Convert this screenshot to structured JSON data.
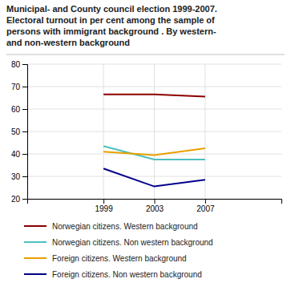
{
  "chart_data": {
    "type": "line",
    "title": "Municipal- and County council election 1999-2007.\nElectoral turnout in per cent among the sample of\npersons with immigrant background . By western-\nand non-western background",
    "x": [
      1999,
      2003,
      2007
    ],
    "series": [
      {
        "name": "Norwegian citizens. Western background",
        "values": [
          66.5,
          66.5,
          65.5
        ],
        "color": "#8b0000"
      },
      {
        "name": "Norwegian citizens. Non western background",
        "values": [
          43.5,
          37.5,
          37.5
        ],
        "color": "#4dbfbf"
      },
      {
        "name": "Foreign citizens. Western background",
        "values": [
          41.0,
          39.5,
          42.5
        ],
        "color": "#e8a000"
      },
      {
        "name": "Foreign citizens. Non western background",
        "values": [
          33.5,
          25.5,
          28.5
        ],
        "color": "#00008b"
      }
    ],
    "xlim": [
      1993,
      2013
    ],
    "xticks": [
      1999,
      2003,
      2007
    ],
    "ylim": [
      20,
      80
    ],
    "yticks": [
      20,
      30,
      40,
      50,
      60,
      70,
      80
    ],
    "grid": true,
    "legend": "bottom"
  }
}
